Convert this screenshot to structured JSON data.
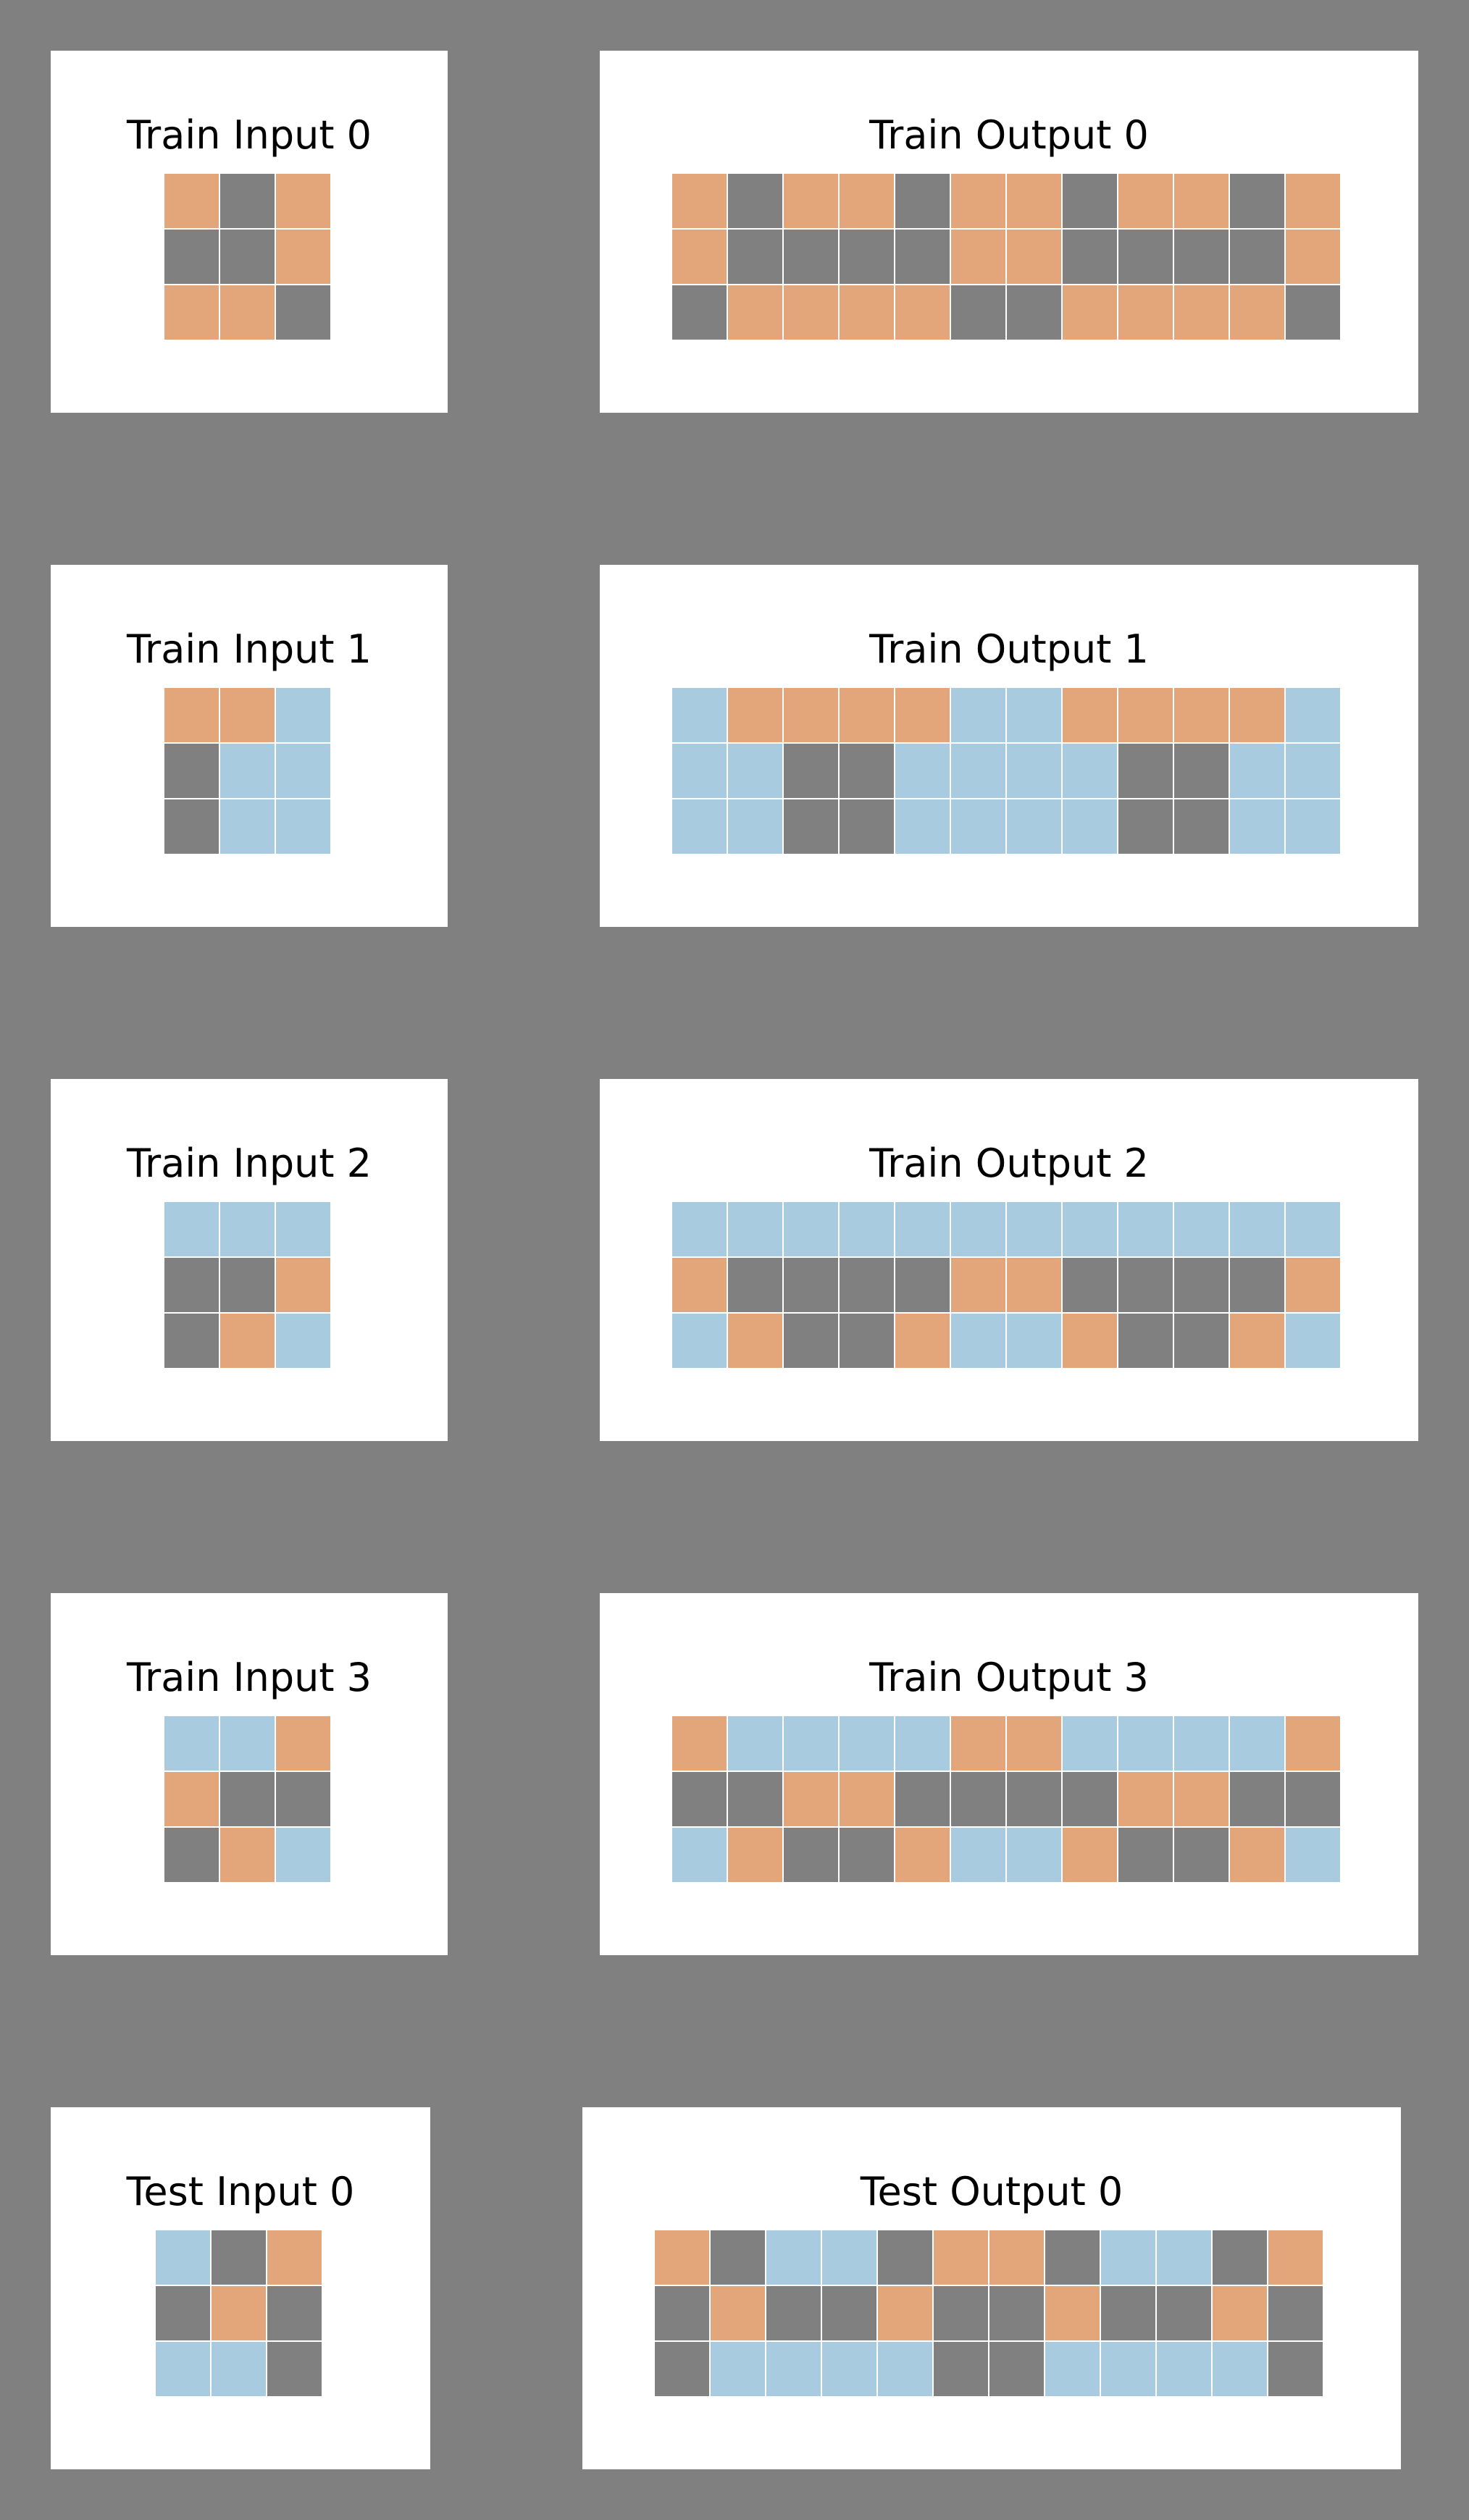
{
  "colors": {
    "0": "#e3a67a",
    "1": "#808080",
    "2": "#a9cbdf"
  },
  "pairs": [
    {
      "input": {
        "title": "Train Input 0",
        "grid": [
          [
            0,
            1,
            0
          ],
          [
            1,
            1,
            0
          ],
          [
            0,
            0,
            1
          ]
        ]
      },
      "output": {
        "title": "Train Output 0",
        "grid": [
          [
            0,
            1,
            0,
            0,
            1,
            0,
            0,
            1,
            0,
            0,
            1,
            0
          ],
          [
            0,
            1,
            1,
            1,
            1,
            0,
            0,
            1,
            1,
            1,
            1,
            0
          ],
          [
            1,
            0,
            0,
            0,
            0,
            1,
            1,
            0,
            0,
            0,
            0,
            1
          ]
        ]
      }
    },
    {
      "input": {
        "title": "Train Input 1",
        "grid": [
          [
            0,
            0,
            2
          ],
          [
            1,
            2,
            2
          ],
          [
            1,
            2,
            2
          ]
        ]
      },
      "output": {
        "title": "Train Output 1",
        "grid": [
          [
            2,
            0,
            0,
            0,
            0,
            2,
            2,
            0,
            0,
            0,
            0,
            2
          ],
          [
            2,
            2,
            1,
            1,
            2,
            2,
            2,
            2,
            1,
            1,
            2,
            2
          ],
          [
            2,
            2,
            1,
            1,
            2,
            2,
            2,
            2,
            1,
            1,
            2,
            2
          ]
        ]
      }
    },
    {
      "input": {
        "title": "Train Input 2",
        "grid": [
          [
            2,
            2,
            2
          ],
          [
            1,
            1,
            0
          ],
          [
            1,
            0,
            2
          ]
        ]
      },
      "output": {
        "title": "Train Output 2",
        "grid": [
          [
            2,
            2,
            2,
            2,
            2,
            2,
            2,
            2,
            2,
            2,
            2,
            2
          ],
          [
            0,
            1,
            1,
            1,
            1,
            0,
            0,
            1,
            1,
            1,
            1,
            0
          ],
          [
            2,
            0,
            1,
            1,
            0,
            2,
            2,
            0,
            1,
            1,
            0,
            2
          ]
        ]
      }
    },
    {
      "input": {
        "title": "Train Input 3",
        "grid": [
          [
            2,
            2,
            0
          ],
          [
            0,
            1,
            1
          ],
          [
            1,
            0,
            2
          ]
        ]
      },
      "output": {
        "title": "Train Output 3",
        "grid": [
          [
            0,
            2,
            2,
            2,
            2,
            0,
            0,
            2,
            2,
            2,
            2,
            0
          ],
          [
            1,
            1,
            0,
            0,
            1,
            1,
            1,
            1,
            0,
            0,
            1,
            1
          ],
          [
            2,
            0,
            1,
            1,
            0,
            2,
            2,
            0,
            1,
            1,
            0,
            2
          ]
        ]
      }
    },
    {
      "input": {
        "title": "Test Input 0",
        "grid": [
          [
            2,
            1,
            0
          ],
          [
            1,
            0,
            1
          ],
          [
            2,
            2,
            1
          ]
        ]
      },
      "output": {
        "title": "Test Output 0",
        "grid": [
          [
            0,
            1,
            2,
            2,
            1,
            0,
            0,
            1,
            2,
            2,
            1,
            0
          ],
          [
            1,
            0,
            1,
            1,
            0,
            1,
            1,
            0,
            1,
            1,
            0,
            1
          ],
          [
            1,
            2,
            2,
            2,
            2,
            1,
            1,
            2,
            2,
            2,
            2,
            1
          ]
        ]
      }
    }
  ]
}
